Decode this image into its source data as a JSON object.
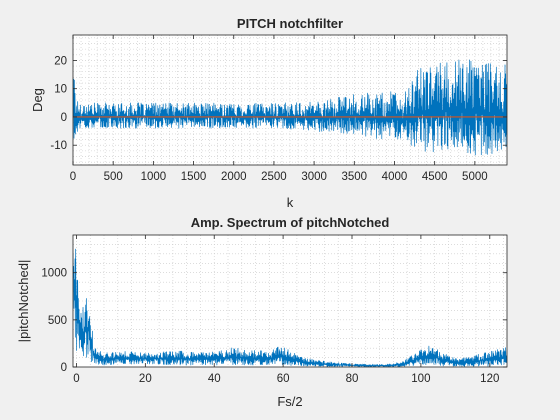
{
  "chart_data": [
    {
      "type": "line",
      "title": "PITCH notchfilter",
      "xlabel": "k",
      "ylabel": "Deg",
      "xlim": [
        0,
        5400
      ],
      "ylim": [
        -17,
        29
      ],
      "xticks": [
        0,
        500,
        1000,
        1500,
        2000,
        2500,
        3000,
        3500,
        4000,
        4500,
        5000
      ],
      "yticks": [
        -10,
        0,
        10,
        20
      ],
      "grid": "dotted minor",
      "series": [
        {
          "color": "#0072bd",
          "envelope": {
            "x": [
              0,
              10,
              20,
              35,
              60,
              100,
              500,
              1000,
              1500,
              2000,
              2500,
              3000,
              3300,
              3500,
              3800,
              4000,
              4100,
              4150,
              4200,
              4300,
              4500,
              4700,
              4900,
              5100,
              5300,
              5400
            ],
            "upper": [
              29,
              24,
              14,
              8,
              6,
              5,
              5,
              5,
              5,
              5,
              5,
              5.5,
              7,
              8,
              9,
              9,
              6,
              10,
              14,
              17,
              19,
              20,
              21,
              20,
              18,
              19
            ],
            "lower": [
              -17,
              -13,
              -9,
              -7,
              -5,
              -4,
              -4,
              -4,
              -4,
              -4,
              -4,
              -5,
              -6,
              -6,
              -8,
              -8,
              -8,
              -9,
              -10,
              -12,
              -13,
              -12,
              -13,
              -14,
              -13,
              -13
            ]
          }
        },
        {
          "color": "#d95319",
          "x": [
            0,
            5400
          ],
          "values": [
            0,
            0
          ]
        }
      ]
    },
    {
      "type": "line",
      "title": "Amp. Spectrum of pitchNotched",
      "xlabel": "Fs/2",
      "ylabel": "|pitchNotched|",
      "xlim": [
        -1,
        125
      ],
      "ylim": [
        0,
        1400
      ],
      "xticks": [
        0,
        20,
        40,
        60,
        80,
        100,
        120
      ],
      "yticks": [
        0,
        500,
        1000
      ],
      "grid": "dotted minor",
      "series": [
        {
          "color": "#0072bd",
          "envelope": {
            "x": [
              -1,
              -0.5,
              0,
              0.5,
              1,
              2,
              3,
              3.5,
              4,
              5,
              6,
              8,
              12,
              20,
              30,
              40,
              45,
              50,
              55,
              60,
              63,
              65,
              70,
              75,
              80,
              85,
              90,
              95,
              97,
              100,
              103,
              106,
              110,
              115,
              120,
              125
            ],
            "upper": [
              1400,
              1400,
              1350,
              900,
              650,
              700,
              780,
              760,
              600,
              300,
              200,
              150,
              170,
              160,
              170,
              160,
              210,
              180,
              170,
              230,
              160,
              110,
              70,
              50,
              35,
              30,
              30,
              60,
              120,
              190,
              240,
              170,
              90,
              120,
              170,
              210
            ],
            "lower": [
              900,
              400,
              150,
              120,
              100,
              80,
              90,
              120,
              60,
              30,
              20,
              20,
              30,
              30,
              20,
              20,
              20,
              20,
              20,
              20,
              10,
              10,
              5,
              5,
              5,
              0,
              0,
              5,
              10,
              20,
              20,
              10,
              5,
              5,
              10,
              20
            ]
          }
        }
      ]
    }
  ]
}
